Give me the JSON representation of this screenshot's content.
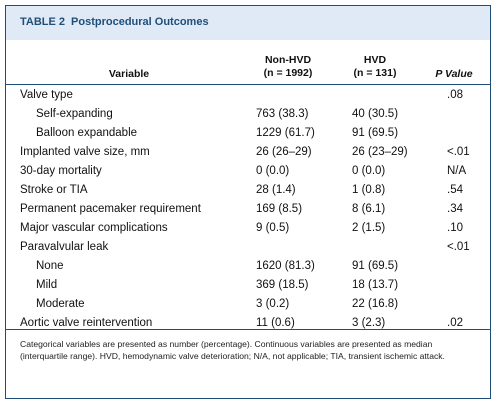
{
  "table": {
    "label": "TABLE 2",
    "title": "Postprocedural Outcomes",
    "headers": {
      "variable": "Variable",
      "non_hvd": "Non-HVD",
      "non_hvd_n": "(n = 1992)",
      "hvd": "HVD",
      "hvd_n": "(n = 131)",
      "p_value": "P Value"
    },
    "rows": [
      {
        "label": "Valve type",
        "non_hvd": "",
        "hvd": "",
        "p": ".08",
        "indent": false
      },
      {
        "label": "Self-expanding",
        "non_hvd": "763 (38.3)",
        "hvd": "40 (30.5)",
        "p": "",
        "indent": true
      },
      {
        "label": "Balloon expandable",
        "non_hvd": "1229 (61.7)",
        "hvd": "91 (69.5)",
        "p": "",
        "indent": true
      },
      {
        "label": "Implanted valve size, mm",
        "non_hvd": "26 (26–29)",
        "hvd": "26 (23–29)",
        "p": "<.01",
        "indent": false
      },
      {
        "label": "30-day mortality",
        "non_hvd": "0 (0.0)",
        "hvd": "0 (0.0)",
        "p": "N/A",
        "indent": false
      },
      {
        "label": "Stroke or TIA",
        "non_hvd": "28 (1.4)",
        "hvd": "1 (0.8)",
        "p": ".54",
        "indent": false
      },
      {
        "label": "Permanent pacemaker requirement",
        "non_hvd": "169 (8.5)",
        "hvd": "8 (6.1)",
        "p": ".34",
        "indent": false
      },
      {
        "label": "Major vascular complications",
        "non_hvd": "9 (0.5)",
        "hvd": "2 (1.5)",
        "p": ".10",
        "indent": false
      },
      {
        "label": "Paravalvular leak",
        "non_hvd": "",
        "hvd": "",
        "p": "<.01",
        "indent": false
      },
      {
        "label": "None",
        "non_hvd": "1620 (81.3)",
        "hvd": "91 (69.5)",
        "p": "",
        "indent": true
      },
      {
        "label": "Mild",
        "non_hvd": "369 (18.5)",
        "hvd": "18 (13.7)",
        "p": "",
        "indent": true
      },
      {
        "label": "Moderate",
        "non_hvd": "3 (0.2)",
        "hvd": "22 (16.8)",
        "p": "",
        "indent": true
      },
      {
        "label": "Aortic valve reintervention",
        "non_hvd": "11 (0.6)",
        "hvd": "3 (2.3)",
        "p": ".02",
        "indent": false
      }
    ],
    "footnote": "Categorical variables are presented as number (percentage). Continuous variables are presented as median (interquartile range). HVD, hemodynamic valve deterioration; N/A, not applicable; TIA, transient ischemic attack."
  },
  "colors": {
    "title": "#1f4e79",
    "title_band": "#dfeaf6",
    "rule": "#1f4e79"
  }
}
